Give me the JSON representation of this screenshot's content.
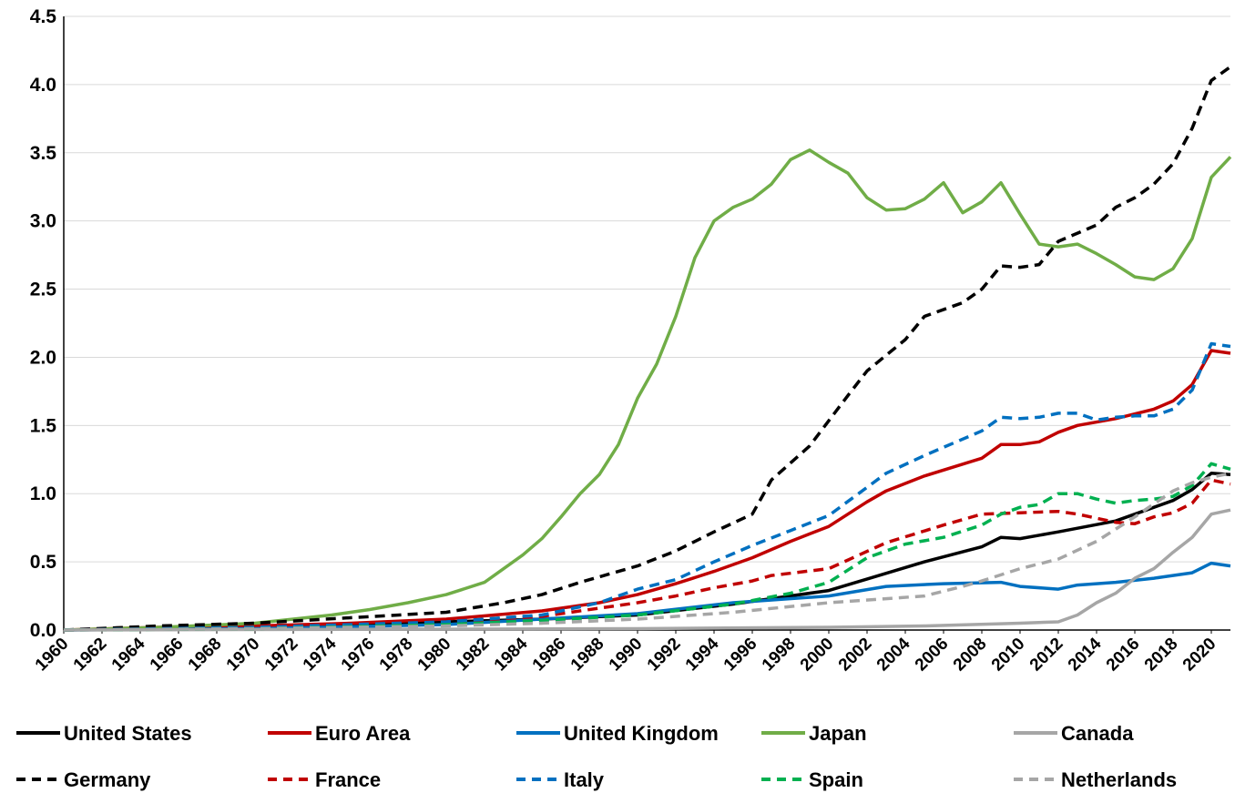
{
  "chart_data": {
    "type": "line",
    "title": "",
    "xlabel": "",
    "ylabel": "",
    "xlim": [
      1960,
      2021
    ],
    "ylim": [
      0,
      4.5
    ],
    "yticks": [
      "0.0",
      "0.5",
      "1.0",
      "1.5",
      "2.0",
      "2.5",
      "3.0",
      "3.5",
      "4.0",
      "4.5"
    ],
    "xticks": [
      "1960",
      "1962",
      "1964",
      "1966",
      "1968",
      "1970",
      "1972",
      "1974",
      "1976",
      "1978",
      "1980",
      "1982",
      "1984",
      "1986",
      "1988",
      "1990",
      "1992",
      "1994",
      "1996",
      "1998",
      "2000",
      "2002",
      "2004",
      "2006",
      "2008",
      "2010",
      "2012",
      "2014",
      "2016",
      "2018",
      "2020"
    ],
    "grid": "horizontal",
    "legend_position": "bottom",
    "series": [
      {
        "name": "United States",
        "color": "#000000",
        "dash": "solid",
        "x": [
          1960,
          1965,
          1970,
          1975,
          1980,
          1985,
          1990,
          1995,
          2000,
          2005,
          2008,
          2009,
          2010,
          2012,
          2015,
          2017,
          2018,
          2019,
          2020,
          2021
        ],
        "values": [
          0.0,
          0.01,
          0.02,
          0.04,
          0.06,
          0.08,
          0.11,
          0.19,
          0.29,
          0.5,
          0.61,
          0.68,
          0.67,
          0.72,
          0.8,
          0.9,
          0.95,
          1.03,
          1.15,
          1.14
        ]
      },
      {
        "name": "Euro Area",
        "color": "#c00000",
        "dash": "solid",
        "x": [
          1960,
          1965,
          1970,
          1975,
          1980,
          1985,
          1988,
          1990,
          1992,
          1994,
          1996,
          1998,
          2000,
          2002,
          2003,
          2005,
          2008,
          2009,
          2010,
          2011,
          2012,
          2013,
          2015,
          2017,
          2018,
          2019,
          2020,
          2021
        ],
        "values": [
          0.0,
          0.02,
          0.03,
          0.05,
          0.08,
          0.14,
          0.2,
          0.26,
          0.34,
          0.43,
          0.53,
          0.65,
          0.76,
          0.94,
          1.02,
          1.13,
          1.26,
          1.36,
          1.36,
          1.38,
          1.45,
          1.5,
          1.55,
          1.62,
          1.68,
          1.8,
          2.05,
          2.03
        ]
      },
      {
        "name": "United Kingdom",
        "color": "#0070c0",
        "dash": "solid",
        "x": [
          1960,
          1970,
          1980,
          1990,
          1995,
          2000,
          2003,
          2006,
          2009,
          2010,
          2012,
          2013,
          2015,
          2017,
          2019,
          2020,
          2021
        ],
        "values": [
          0.0,
          0.01,
          0.04,
          0.12,
          0.2,
          0.25,
          0.32,
          0.34,
          0.35,
          0.32,
          0.3,
          0.33,
          0.35,
          0.38,
          0.42,
          0.49,
          0.47
        ]
      },
      {
        "name": "Japan",
        "color": "#70ad47",
        "dash": "solid",
        "x": [
          1960,
          1965,
          1970,
          1972,
          1974,
          1976,
          1978,
          1980,
          1982,
          1984,
          1985,
          1986,
          1987,
          1988,
          1989,
          1990,
          1991,
          1992,
          1993,
          1994,
          1995,
          1996,
          1997,
          1998,
          1999,
          2000,
          2001,
          2002,
          2003,
          2004,
          2005,
          2006,
          2007,
          2008,
          2009,
          2010,
          2011,
          2012,
          2013,
          2014,
          2015,
          2016,
          2017,
          2018,
          2019,
          2020,
          2021
        ],
        "values": [
          0.0,
          0.02,
          0.05,
          0.08,
          0.11,
          0.15,
          0.2,
          0.26,
          0.35,
          0.55,
          0.67,
          0.83,
          1.0,
          1.14,
          1.36,
          1.7,
          1.95,
          2.3,
          2.73,
          3.0,
          3.1,
          3.16,
          3.27,
          3.45,
          3.52,
          3.43,
          3.35,
          3.17,
          3.08,
          3.09,
          3.16,
          3.28,
          3.06,
          3.14,
          3.28,
          3.05,
          2.83,
          2.81,
          2.83,
          2.76,
          2.68,
          2.59,
          2.57,
          2.65,
          2.87,
          3.32,
          3.47
        ]
      },
      {
        "name": "Canada",
        "color": "#a6a6a6",
        "dash": "solid",
        "x": [
          1960,
          1990,
          2000,
          2005,
          2010,
          2012,
          2013,
          2014,
          2015,
          2016,
          2017,
          2018,
          2019,
          2020,
          2021
        ],
        "values": [
          0.0,
          0.01,
          0.02,
          0.03,
          0.05,
          0.06,
          0.11,
          0.2,
          0.27,
          0.38,
          0.45,
          0.57,
          0.68,
          0.85,
          0.88
        ]
      },
      {
        "name": "Germany",
        "color": "#000000",
        "dash": "dash",
        "x": [
          1960,
          1965,
          1970,
          1975,
          1980,
          1983,
          1985,
          1987,
          1990,
          1992,
          1994,
          1996,
          1997,
          1999,
          2001,
          2002,
          2004,
          2005,
          2007,
          2008,
          2009,
          2010,
          2011,
          2012,
          2014,
          2015,
          2016,
          2017,
          2018,
          2019,
          2020,
          2021
        ],
        "values": [
          0.0,
          0.03,
          0.05,
          0.09,
          0.13,
          0.2,
          0.26,
          0.35,
          0.47,
          0.58,
          0.72,
          0.85,
          1.1,
          1.35,
          1.72,
          1.9,
          2.13,
          2.3,
          2.4,
          2.5,
          2.67,
          2.66,
          2.68,
          2.85,
          2.97,
          3.1,
          3.17,
          3.27,
          3.42,
          3.68,
          4.03,
          4.13
        ]
      },
      {
        "name": "France",
        "color": "#c00000",
        "dash": "dash",
        "x": [
          1960,
          1970,
          1980,
          1985,
          1988,
          1990,
          1992,
          1994,
          1996,
          1997,
          2000,
          2003,
          2006,
          2008,
          2010,
          2012,
          2013,
          2015,
          2016,
          2017,
          2018,
          2019,
          2020,
          2021
        ],
        "values": [
          0.0,
          0.02,
          0.06,
          0.1,
          0.16,
          0.2,
          0.25,
          0.31,
          0.36,
          0.4,
          0.45,
          0.64,
          0.77,
          0.85,
          0.86,
          0.87,
          0.85,
          0.79,
          0.78,
          0.83,
          0.86,
          0.93,
          1.1,
          1.07
        ]
      },
      {
        "name": "Italy",
        "color": "#0070c0",
        "dash": "dash",
        "x": [
          1960,
          1970,
          1980,
          1985,
          1988,
          1990,
          1992,
          1994,
          1996,
          1998,
          2000,
          2003,
          2005,
          2008,
          2009,
          2010,
          2011,
          2012,
          2013,
          2014,
          2015,
          2016,
          2017,
          2018,
          2019,
          2020,
          2021
        ],
        "values": [
          0.0,
          0.02,
          0.06,
          0.11,
          0.2,
          0.3,
          0.37,
          0.5,
          0.62,
          0.73,
          0.84,
          1.15,
          1.28,
          1.46,
          1.56,
          1.55,
          1.56,
          1.59,
          1.59,
          1.54,
          1.56,
          1.57,
          1.57,
          1.62,
          1.76,
          2.1,
          2.08
        ]
      },
      {
        "name": "Spain",
        "color": "#00b050",
        "dash": "dash",
        "x": [
          1960,
          1970,
          1980,
          1985,
          1990,
          1995,
          1998,
          2000,
          2002,
          2004,
          2006,
          2008,
          2009,
          2010,
          2011,
          2012,
          2013,
          2014,
          2015,
          2016,
          2017,
          2018,
          2019,
          2020,
          2021
        ],
        "values": [
          0.0,
          0.01,
          0.04,
          0.07,
          0.11,
          0.19,
          0.27,
          0.35,
          0.53,
          0.63,
          0.68,
          0.77,
          0.85,
          0.9,
          0.92,
          1.0,
          1.0,
          0.96,
          0.93,
          0.95,
          0.96,
          0.98,
          1.06,
          1.22,
          1.18
        ]
      },
      {
        "name": "Netherlands",
        "color": "#a6a6a6",
        "dash": "dash",
        "x": [
          1960,
          1970,
          1980,
          1985,
          1990,
          1995,
          2000,
          2005,
          2007,
          2008,
          2010,
          2012,
          2014,
          2016,
          2018,
          2019,
          2020,
          2021
        ],
        "values": [
          0.0,
          0.01,
          0.03,
          0.05,
          0.08,
          0.13,
          0.2,
          0.25,
          0.32,
          0.36,
          0.45,
          0.52,
          0.65,
          0.83,
          1.02,
          1.08,
          1.12,
          1.15
        ]
      }
    ]
  }
}
